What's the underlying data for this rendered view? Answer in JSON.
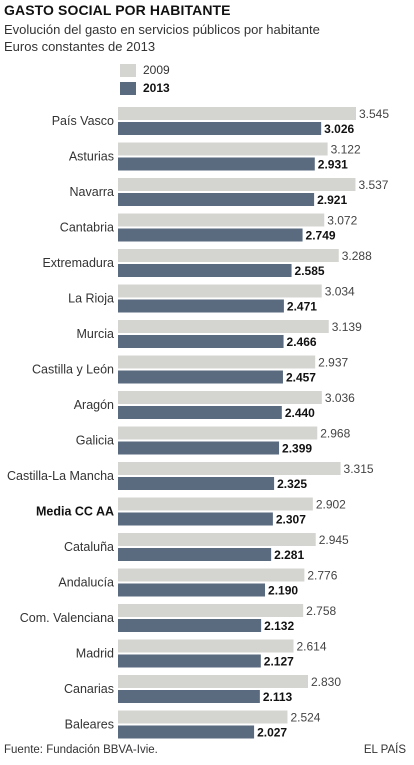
{
  "header": {
    "title": "GASTO SOCIAL POR HABITANTE",
    "subtitle": "Evolución del gasto en servicios públicos por habitante",
    "units": "Euros constantes de 2013"
  },
  "colors": {
    "series_2009": "#d4d5d1",
    "series_2013": "#5a6b7f"
  },
  "footer": {
    "source": "Fuente: Fundación BBVA-Ivie.",
    "brand": "EL PAÍS"
  },
  "chart_data": {
    "type": "bar",
    "orientation": "horizontal",
    "title": "GASTO SOCIAL POR HABITANTE",
    "subtitle": "Evolución del gasto en servicios públicos por habitante",
    "units": "Euros constantes de 2013",
    "xlim": [
      0,
      3545
    ],
    "grid": false,
    "legend_position": "top",
    "highlighted_category": "Media CC AA",
    "categories": [
      "País Vasco",
      "Asturias",
      "Navarra",
      "Cantabria",
      "Extremadura",
      "La Rioja",
      "Murcia",
      "Castilla y León",
      "Aragón",
      "Galicia",
      "Castilla-La Mancha",
      "Media CC AA",
      "Cataluña",
      "Andalucía",
      "Com. Valenciana",
      "Madrid",
      "Canarias",
      "Baleares"
    ],
    "series": [
      {
        "name": "2009",
        "values": [
          3545,
          3122,
          3537,
          3072,
          3288,
          3034,
          3139,
          2937,
          3036,
          2968,
          3315,
          2902,
          2945,
          2776,
          2758,
          2614,
          2830,
          2524
        ],
        "labels": [
          "3.545",
          "3.122",
          "3.537",
          "3.072",
          "3.288",
          "3.034",
          "3.139",
          "2.937",
          "3.036",
          "2.968",
          "3.315",
          "2.902",
          "2.945",
          "2.776",
          "2.758",
          "2.614",
          "2.830",
          "2.524"
        ]
      },
      {
        "name": "2013",
        "values": [
          3026,
          2931,
          2921,
          2749,
          2585,
          2471,
          2466,
          2457,
          2440,
          2399,
          2325,
          2307,
          2281,
          2190,
          2132,
          2127,
          2113,
          2027
        ],
        "labels": [
          "3.026",
          "2.931",
          "2.921",
          "2.749",
          "2.585",
          "2.471",
          "2.466",
          "2.457",
          "2.440",
          "2.399",
          "2.325",
          "2.307",
          "2.281",
          "2.190",
          "2.132",
          "2.127",
          "2.113",
          "2.027"
        ]
      }
    ]
  }
}
